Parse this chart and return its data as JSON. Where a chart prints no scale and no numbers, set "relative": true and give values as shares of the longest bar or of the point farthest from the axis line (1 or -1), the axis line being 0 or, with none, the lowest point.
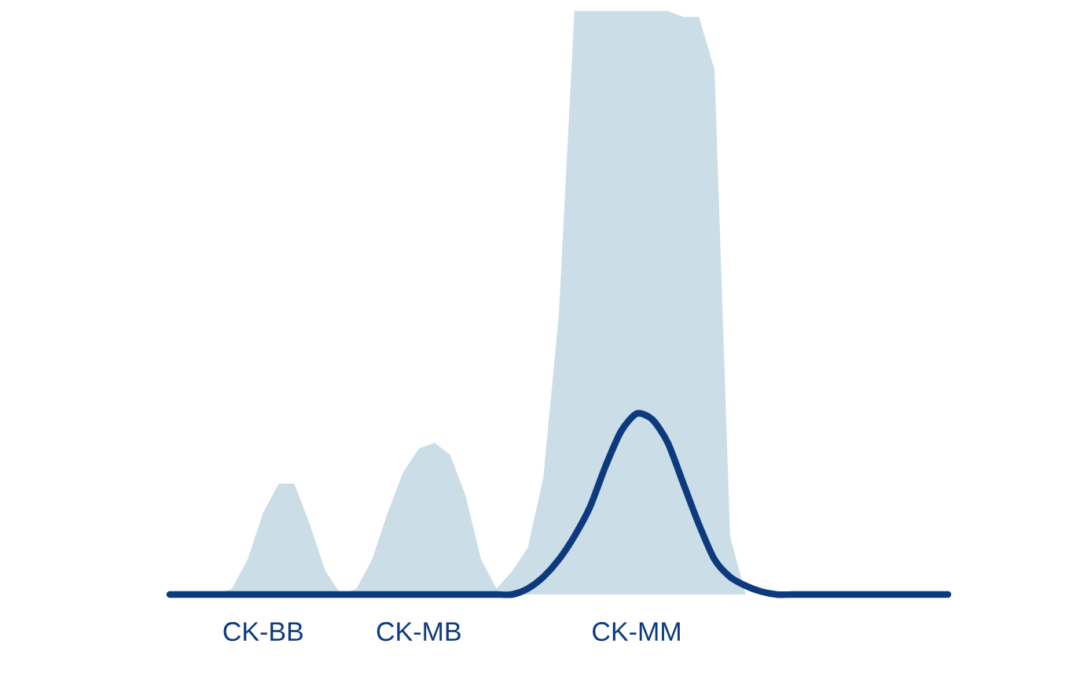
{
  "chart_data": {
    "type": "area",
    "relative": true,
    "categories": [
      null,
      null,
      null,
      null,
      null,
      null,
      "CK-BB",
      null,
      null,
      null,
      null,
      null,
      null,
      null,
      null,
      null,
      "CK-MB",
      null,
      null,
      null,
      null,
      null,
      null,
      null,
      null,
      null,
      null,
      null,
      null,
      null,
      "CK-MM",
      null,
      null,
      null,
      null,
      null,
      null,
      null,
      null,
      null,
      null,
      null,
      null,
      null,
      null,
      null,
      null,
      null,
      null,
      null,
      null
    ],
    "series": [
      {
        "type": "area",
        "color": "#cbdde6",
        "values": [
          0,
          0,
          0,
          0,
          0.01,
          0.06,
          0.14,
          0.19,
          0.19,
          0.12,
          0.04,
          0,
          0.01,
          0.06,
          0.14,
          0.21,
          0.25,
          0.26,
          0.24,
          0.17,
          0.06,
          0.01,
          0.04,
          0.08,
          0.2,
          0.48,
          1,
          1,
          1,
          1,
          1,
          1,
          1,
          0.99,
          0.99,
          0.9,
          0.1,
          0,
          0,
          0,
          0,
          0,
          0,
          0,
          0,
          0,
          0,
          0,
          0,
          0,
          0
        ]
      },
      {
        "type": "line",
        "color": "#0d3a7e",
        "values": [
          0,
          0,
          0,
          0,
          0,
          0,
          0,
          0,
          0,
          0,
          0,
          0,
          0,
          0,
          0,
          0,
          0,
          0,
          0,
          0,
          0,
          0,
          0,
          0.01,
          0.03,
          0.06,
          0.1,
          0.15,
          0.22,
          0.28,
          0.31,
          0.3,
          0.26,
          0.19,
          0.12,
          0.06,
          0.03,
          0.015,
          0.005,
          0,
          0,
          0,
          0,
          0,
          0,
          0,
          0,
          0,
          0,
          0,
          0
        ]
      }
    ]
  }
}
